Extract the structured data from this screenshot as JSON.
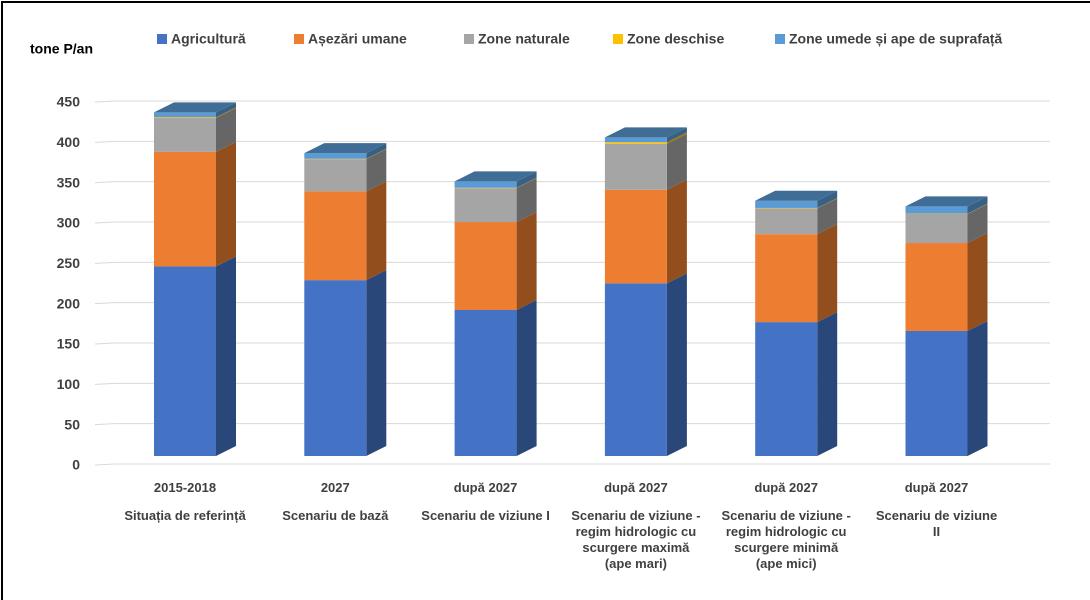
{
  "chart_data": {
    "type": "bar3d_stacked",
    "y_label": "tone P/an",
    "categories": [
      "2015-2018",
      "2027",
      "după 2027",
      "după 2027",
      "după 2027",
      "după 2027"
    ],
    "scenarios": [
      "Situația de referință",
      "Scenariu de bază",
      "Scenariu de viziune I",
      "Scenariu de viziune -regim hidrologic cu scurgere maximă (ape mari)",
      "Scenariu de viziune -regim hidrologic cu scurgere minimă (ape mici)",
      "Scenariu de viziune II"
    ],
    "series": [
      {
        "name": "Agricultură",
        "color": "#4472c4",
        "values": [
          235,
          218,
          181,
          214,
          166,
          155
        ]
      },
      {
        "name": "Așezări umane",
        "color": "#ed7d31",
        "values": [
          142,
          110,
          109,
          116,
          109,
          109
        ]
      },
      {
        "name": "Zone naturale",
        "color": "#a5a5a5",
        "values": [
          42,
          40,
          42,
          57,
          32,
          36
        ]
      },
      {
        "name": "Zone deschise",
        "color": "#ffc000",
        "values": [
          1,
          0.5,
          0.5,
          2,
          0.5,
          0.5
        ]
      },
      {
        "name": "Zone umede și ape de suprafață",
        "color": "#5b9bd5",
        "values": [
          6,
          7,
          8,
          6,
          9,
          9
        ]
      }
    ],
    "ylim": [
      0,
      450
    ],
    "yticks": [
      0,
      50,
      100,
      150,
      200,
      250,
      300,
      350,
      400,
      450
    ],
    "grid": true
  }
}
